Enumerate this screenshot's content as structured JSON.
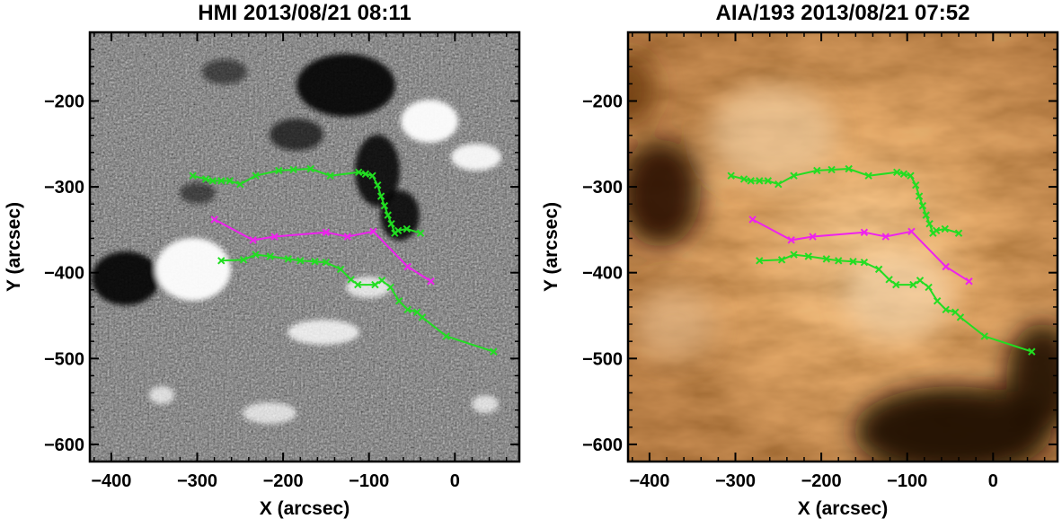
{
  "chart_data": [
    {
      "type": "scatter",
      "title": "HMI 2013/08/21 08:11",
      "xlabel": "X (arcsec)",
      "ylabel": "Y (arcsec)",
      "xlim": [
        -425,
        75
      ],
      "ylim": [
        -620,
        -120
      ],
      "xticks": [
        -400,
        -300,
        -200,
        -100,
        0
      ],
      "yticks": [
        -600,
        -500,
        -400,
        -300,
        -200
      ],
      "background": "magnetogram",
      "grid": false,
      "series": [
        {
          "color": "#22dd22",
          "marker": "x",
          "x": [
            -305,
            -290,
            -282,
            -272,
            -262,
            -250,
            -232,
            -205,
            -188,
            -168,
            -145,
            -112,
            -104,
            -96,
            -90,
            -86,
            -82,
            -78,
            -74,
            -70,
            -66,
            -56,
            -40
          ],
          "y": [
            -287,
            -291,
            -293,
            -293,
            -293,
            -297,
            -287,
            -281,
            -280,
            -279,
            -287,
            -283,
            -285,
            -287,
            -298,
            -311,
            -322,
            -333,
            -343,
            -354,
            -351,
            -349,
            -354
          ]
        },
        {
          "color": "#ee22ee",
          "marker": "x",
          "x": [
            -280,
            -235,
            -210,
            -150,
            -125,
            -95,
            -55,
            -28
          ],
          "y": [
            -338,
            -362,
            -358,
            -353,
            -358,
            -352,
            -393,
            -410
          ]
        },
        {
          "color": "#22dd22",
          "marker": "x",
          "x": [
            -272,
            -246,
            -232,
            -215,
            -194,
            -180,
            -163,
            -150,
            -133,
            -121,
            -113,
            -93,
            -85,
            -75,
            -65,
            -55,
            -44,
            -38,
            -10,
            45
          ],
          "y": [
            -386,
            -385,
            -379,
            -381,
            -384,
            -386,
            -387,
            -388,
            -396,
            -408,
            -414,
            -414,
            -409,
            -417,
            -433,
            -443,
            -446,
            -452,
            -474,
            -492
          ]
        }
      ]
    },
    {
      "type": "scatter",
      "title": "AIA/193 2013/08/21 07:52",
      "xlabel": "X (arcsec)",
      "ylabel": "Y (arcsec)",
      "xlim": [
        -425,
        75
      ],
      "ylim": [
        -620,
        -120
      ],
      "xticks": [
        -400,
        -300,
        -200,
        -100,
        0
      ],
      "yticks": [
        -600,
        -500,
        -400,
        -300,
        -200
      ],
      "background": "euv-193",
      "grid": false,
      "series": [
        {
          "color": "#22dd22",
          "marker": "x",
          "x": [
            -305,
            -290,
            -282,
            -272,
            -262,
            -250,
            -232,
            -205,
            -188,
            -168,
            -145,
            -112,
            -104,
            -96,
            -90,
            -86,
            -82,
            -78,
            -74,
            -70,
            -66,
            -56,
            -40
          ],
          "y": [
            -287,
            -291,
            -293,
            -293,
            -293,
            -297,
            -287,
            -281,
            -280,
            -279,
            -287,
            -283,
            -285,
            -287,
            -298,
            -311,
            -322,
            -333,
            -343,
            -354,
            -351,
            -349,
            -354
          ]
        },
        {
          "color": "#ee22ee",
          "marker": "x",
          "x": [
            -280,
            -235,
            -210,
            -150,
            -125,
            -95,
            -55,
            -28
          ],
          "y": [
            -338,
            -362,
            -358,
            -353,
            -358,
            -352,
            -393,
            -410
          ]
        },
        {
          "color": "#22dd22",
          "marker": "x",
          "x": [
            -272,
            -246,
            -232,
            -215,
            -194,
            -180,
            -163,
            -150,
            -133,
            -121,
            -113,
            -93,
            -85,
            -75,
            -65,
            -55,
            -44,
            -38,
            -10,
            45
          ],
          "y": [
            -386,
            -385,
            -379,
            -381,
            -384,
            -386,
            -387,
            -388,
            -396,
            -408,
            -414,
            -414,
            -409,
            -417,
            -433,
            -443,
            -446,
            -452,
            -474,
            -492
          ]
        }
      ]
    }
  ]
}
